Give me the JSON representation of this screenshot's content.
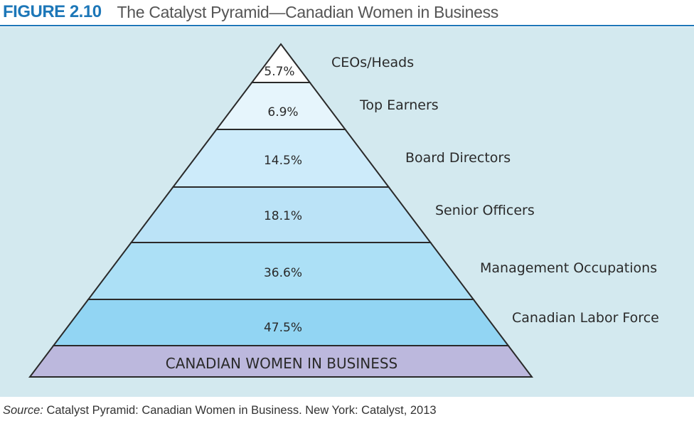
{
  "figure": {
    "number": "FIGURE 2.10",
    "title": "The Catalyst Pyramid—Canadian Women in Business"
  },
  "pyramid": {
    "tiers": [
      {
        "label": "CEOs/Heads",
        "percent": "5.7%",
        "color": "#ffffff"
      },
      {
        "label": "Top Earners",
        "percent": "6.9%",
        "color": "#e6f5fc"
      },
      {
        "label": "Board Directors",
        "percent": "14.5%",
        "color": "#cdebfa"
      },
      {
        "label": "Senior Officers",
        "percent": "18.1%",
        "color": "#bbe3f7"
      },
      {
        "label": "Management Occupations",
        "percent": "36.6%",
        "color": "#ace0f6"
      },
      {
        "label": "Canadian Labor Force",
        "percent": "47.5%",
        "color": "#92d5f3"
      }
    ],
    "base": {
      "label": "CANADIAN WOMEN IN BUSINESS",
      "color": "#bcb8dd"
    },
    "outline_color": "#2a2a2a",
    "panel_color": "#d3e9ef"
  },
  "source": {
    "prefix": "Source:",
    "text": " Catalyst Pyramid: Canadian Women in Business. New York: Catalyst, 2013"
  }
}
